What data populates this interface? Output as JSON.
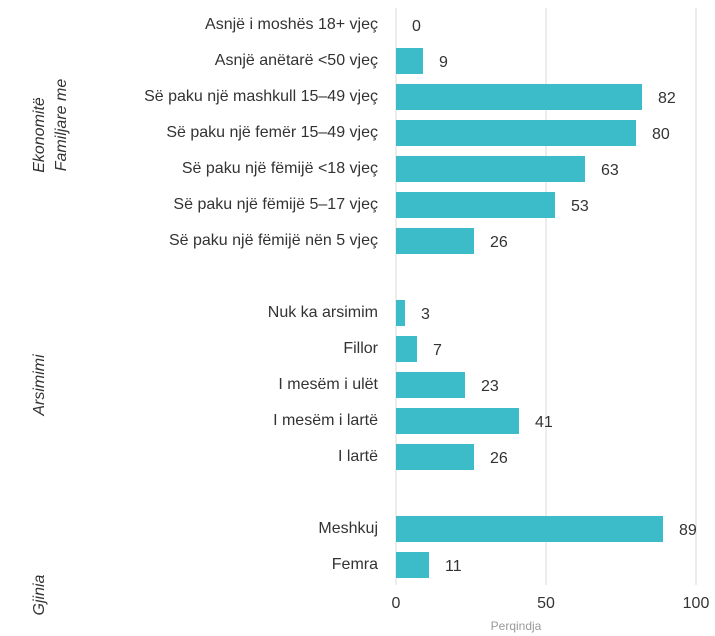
{
  "chart_data": {
    "type": "bar",
    "orientation": "horizontal",
    "categories": [
      "Asnjë i moshës 18+ vjeç",
      "Asnjë anëtarë <50 vjeç",
      "Së paku një mashkull 15–49 vjeç",
      "Së paku një femër 15–49 vjeç",
      "Së paku një fëmijë <18 vjeç",
      "Së paku një fëmijë 5–17 vjeç",
      "Së paku një fëmijë nën 5 vjeç",
      null,
      "Nuk ka arsimim",
      "Fillor",
      "I mesëm i ulët",
      "I mesëm i lartë",
      "I lartë",
      null,
      "Meshkuj",
      "Femra"
    ],
    "values": [
      0,
      9,
      82,
      80,
      63,
      53,
      26,
      null,
      3,
      7,
      23,
      41,
      26,
      null,
      89,
      11
    ],
    "color": "#3bbcc8",
    "xlim": [
      0,
      100
    ],
    "xticks": [
      0,
      50,
      100
    ],
    "grid": true,
    "x_label": "Perqindja",
    "annotations": [
      "Ekonomitë",
      "Familjare me",
      "Arsimimi",
      "Gjinia"
    ]
  }
}
